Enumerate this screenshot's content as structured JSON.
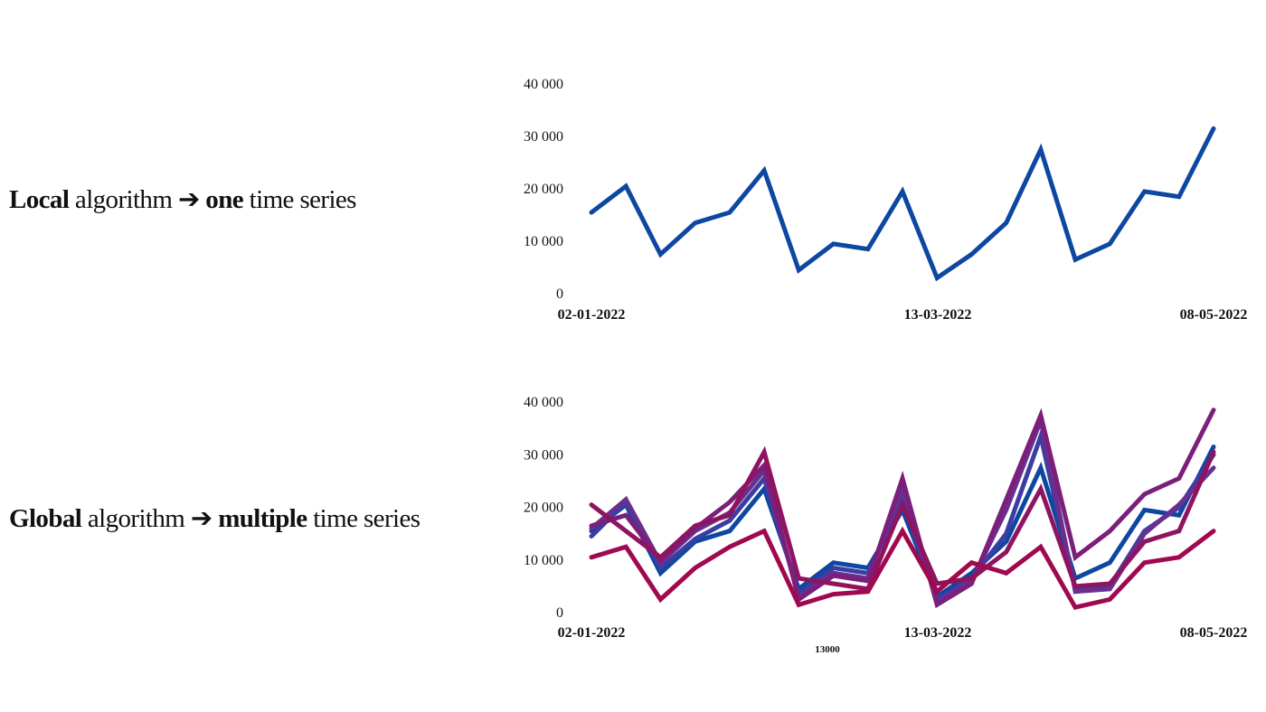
{
  "colors": {
    "background": "#ffffff",
    "local_series": "#0d47a1",
    "multi_series": [
      "#0d47a1",
      "#3a3ea3",
      "#6a2f8e",
      "#7b1f7a",
      "#8e1460",
      "#a0084f"
    ]
  },
  "labels": {
    "local": {
      "bold": "Local",
      "mid": " algorithm ➔ ",
      "bold2": "one",
      "end": " time series"
    },
    "global": {
      "bold": "Global",
      "mid": " algorithm ➔ ",
      "bold2": "multiple",
      "end": " time series"
    }
  },
  "stray_text": "13000",
  "chart_data": [
    {
      "type": "line",
      "title": "",
      "xlabel": "",
      "ylabel": "",
      "ylim": [
        0,
        40000
      ],
      "yticks": [
        "40 000",
        "30 000",
        "20 000",
        "10 000",
        "0"
      ],
      "xtick_labels": [
        "02-01-2022",
        "13-03-2022",
        "08-05-2022"
      ],
      "x": [
        "02-01-2022",
        "09-01-2022",
        "16-01-2022",
        "23-01-2022",
        "30-01-2022",
        "06-02-2022",
        "13-02-2022",
        "20-02-2022",
        "27-02-2022",
        "06-03-2022",
        "13-03-2022",
        "20-03-2022",
        "27-03-2022",
        "03-04-2022",
        "10-04-2022",
        "17-04-2022",
        "24-04-2022",
        "01-05-2022",
        "08-05-2022"
      ],
      "grid": false,
      "series": [
        {
          "values": [
            15500,
            20500,
            7500,
            13500,
            15500,
            23500,
            4500,
            9500,
            8500,
            19500,
            3000,
            7500,
            13500,
            27500,
            6500,
            9500,
            19500,
            18500,
            31500
          ]
        }
      ]
    },
    {
      "type": "line",
      "title": "",
      "xlabel": "",
      "ylabel": "",
      "ylim": [
        0,
        40000
      ],
      "yticks": [
        "40 000",
        "30 000",
        "20 000",
        "10 000",
        "0"
      ],
      "xtick_labels": [
        "02-01-2022",
        "13-03-2022",
        "08-05-2022"
      ],
      "x": [
        "02-01-2022",
        "09-01-2022",
        "16-01-2022",
        "23-01-2022",
        "30-01-2022",
        "06-02-2022",
        "13-02-2022",
        "20-02-2022",
        "27-02-2022",
        "06-03-2022",
        "13-03-2022",
        "20-03-2022",
        "27-03-2022",
        "03-04-2022",
        "10-04-2022",
        "17-04-2022",
        "24-04-2022",
        "01-05-2022",
        "08-05-2022"
      ],
      "grid": false,
      "series": [
        {
          "values": [
            15500,
            20500,
            7500,
            13500,
            15500,
            23500,
            4500,
            9500,
            8500,
            19500,
            3000,
            7500,
            13500,
            27500,
            6500,
            9500,
            19500,
            18500,
            31500
          ]
        },
        {
          "values": [
            14500,
            21000,
            8500,
            14000,
            17500,
            25500,
            3500,
            8500,
            7500,
            21500,
            2500,
            6500,
            15000,
            33500,
            4500,
            5000,
            15500,
            20000,
            30000
          ]
        },
        {
          "values": [
            16000,
            21500,
            9500,
            15500,
            19000,
            27000,
            3000,
            7500,
            6500,
            23500,
            2000,
            6000,
            19500,
            36500,
            4000,
            4500,
            15000,
            20500,
            27500
          ]
        },
        {
          "values": [
            16500,
            18500,
            10000,
            16000,
            21000,
            28000,
            2500,
            7000,
            6000,
            25500,
            1500,
            5500,
            21500,
            37500,
            10500,
            15500,
            22500,
            25500,
            38500
          ]
        },
        {
          "values": [
            20500,
            15500,
            10500,
            16500,
            18500,
            30500,
            6500,
            5500,
            4500,
            20500,
            5500,
            6500,
            11500,
            23500,
            5000,
            5500,
            13500,
            15500,
            30500
          ]
        },
        {
          "values": [
            10500,
            12500,
            2500,
            8500,
            12500,
            15500,
            1500,
            3500,
            4000,
            15500,
            4000,
            9500,
            7500,
            12500,
            1000,
            2500,
            9500,
            10500,
            15500
          ]
        }
      ]
    }
  ]
}
